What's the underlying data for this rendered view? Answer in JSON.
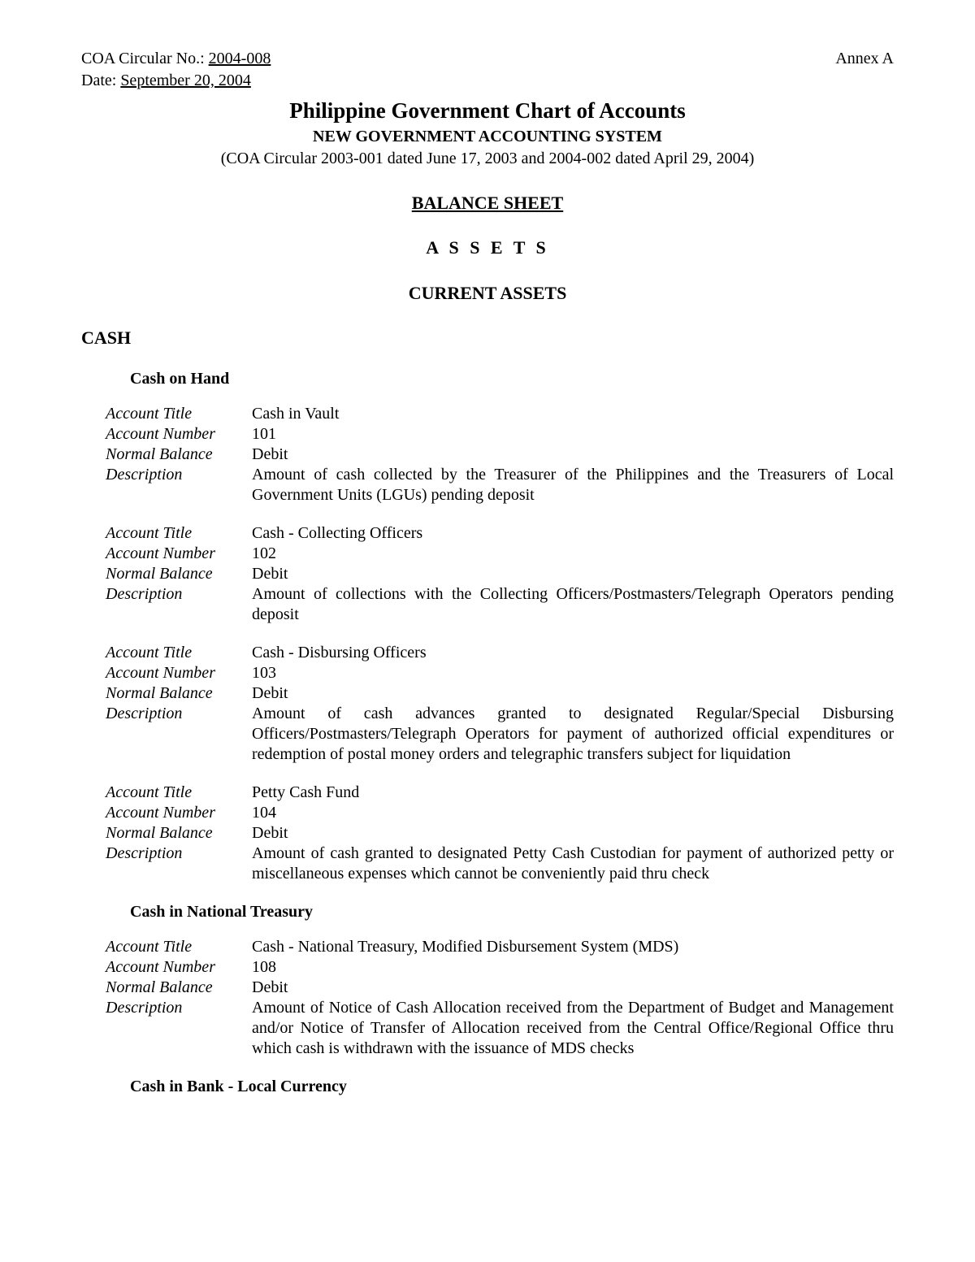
{
  "header": {
    "circular_label": "COA Circular No.:",
    "circular_value": " 2004-008 ",
    "date_label": "Date:",
    "date_value": "   September 20, 2004      ",
    "annex": "Annex A"
  },
  "titles": {
    "main": "Philippine Government Chart of Accounts",
    "subtitle": "NEW GOVERNMENT ACCOUNTING SYSTEM",
    "reference": "(COA Circular 2003-001 dated June 17, 2003 and 2004-002 dated April 29, 2004)",
    "balance_sheet": "BALANCE SHEET",
    "assets": "A S S E T S",
    "current_assets": "CURRENT ASSETS"
  },
  "field_labels": {
    "title": "Account Title",
    "number": "Account Number",
    "balance": "Normal Balance",
    "description": "Description"
  },
  "categories": [
    {
      "heading": "CASH",
      "subcategories": [
        {
          "heading": "Cash on Hand",
          "accounts": [
            {
              "title": "Cash in Vault",
              "number": "101",
              "balance": "Debit",
              "description": "Amount of cash collected by the Treasurer of the Philippines and the Treasurers of Local Government Units (LGUs) pending deposit"
            },
            {
              "title": "Cash - Collecting Officers",
              "number": "102",
              "balance": "Debit",
              "description": "Amount of collections with the Collecting Officers/Postmasters/Telegraph Operators pending deposit"
            },
            {
              "title": "Cash - Disbursing Officers",
              "number": "103",
              "balance": "Debit",
              "description": "Amount of cash advances granted to designated Regular/Special Disbursing Officers/Postmasters/Telegraph Operators for payment of authorized official expenditures or redemption of postal money orders and telegraphic transfers subject for liquidation"
            },
            {
              "title": "Petty Cash Fund",
              "number": "104",
              "balance": "Debit",
              "description": "Amount of cash granted to designated Petty Cash Custodian for payment of authorized petty or miscellaneous expenses which cannot be conveniently paid thru check"
            }
          ]
        },
        {
          "heading": "Cash in National Treasury",
          "accounts": [
            {
              "title": "Cash - National Treasury, Modified Disbursement System (MDS)",
              "number": "108",
              "balance": "Debit",
              "description": "Amount of Notice of Cash Allocation received from the Department of Budget and Management and/or Notice of Transfer of Allocation received from the Central Office/Regional Office thru which cash is withdrawn with the issuance of MDS checks"
            }
          ]
        },
        {
          "heading": "Cash in Bank - Local Currency",
          "accounts": []
        }
      ]
    }
  ]
}
